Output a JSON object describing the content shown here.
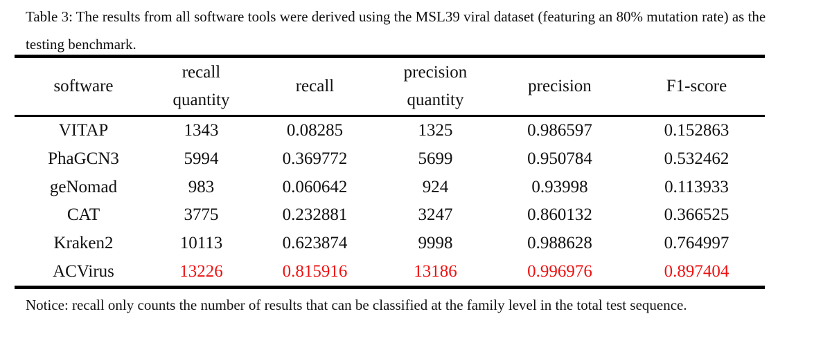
{
  "caption": "Table 3: The results from all software tools were derived using the MSL39 viral dataset (featuring an 80% mutation rate) as the testing benchmark.",
  "headers": [
    {
      "line1": "software",
      "line2": ""
    },
    {
      "line1": "recall",
      "line2": "quantity"
    },
    {
      "line1": "recall",
      "line2": ""
    },
    {
      "line1": "precision",
      "line2": "quantity"
    },
    {
      "line1": "precision",
      "line2": ""
    },
    {
      "line1": "F1-score",
      "line2": ""
    }
  ],
  "rows": [
    {
      "software": "VITAP",
      "recall_quantity": "1343",
      "recall": "0.08285",
      "precision_quantity": "1325",
      "precision": "0.986597",
      "f1": "0.152863",
      "highlight": false
    },
    {
      "software": "PhaGCN3",
      "recall_quantity": "5994",
      "recall": "0.369772",
      "precision_quantity": "5699",
      "precision": "0.950784",
      "f1": "0.532462",
      "highlight": false
    },
    {
      "software": "geNomad",
      "recall_quantity": "983",
      "recall": "0.060642",
      "precision_quantity": "924",
      "precision": "0.93998",
      "f1": "0.113933",
      "highlight": false
    },
    {
      "software": "CAT",
      "recall_quantity": "3775",
      "recall": "0.232881",
      "precision_quantity": "3247",
      "precision": "0.860132",
      "f1": "0.366525",
      "highlight": false
    },
    {
      "software": "Kraken2",
      "recall_quantity": "10113",
      "recall": "0.623874",
      "precision_quantity": "9998",
      "precision": "0.988628",
      "f1": "0.764997",
      "highlight": false
    },
    {
      "software": "ACVirus",
      "recall_quantity": "13226",
      "recall": "0.815916",
      "precision_quantity": "13186",
      "precision": "0.996976",
      "f1": "0.897404",
      "highlight": true
    }
  ],
  "highlight_color": "#ee1111",
  "notice": "Notice: recall only counts the number of results that can be classified at the family level in the total test sequence."
}
